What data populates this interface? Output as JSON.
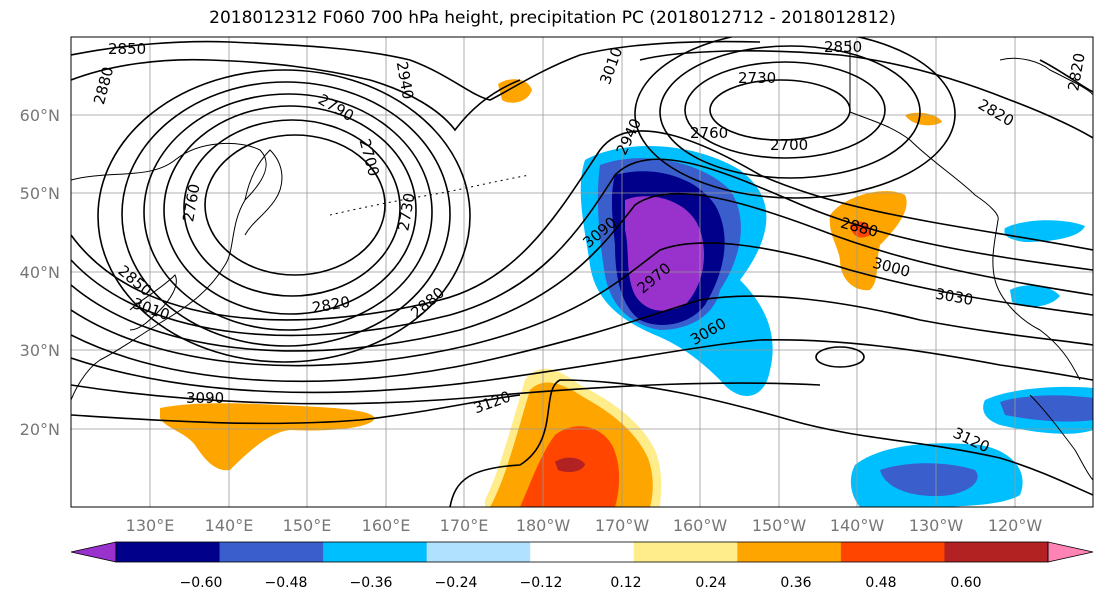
{
  "title": "2018012312 F060 700 hPa height, precipitation PC (2018012712 - 2018012812)",
  "lat_labels": [
    "60°N",
    "50°N",
    "40°N",
    "30°N",
    "20°N"
  ],
  "lon_labels": [
    "130°E",
    "140°E",
    "150°E",
    "160°E",
    "170°E",
    "180°W",
    "170°W",
    "160°W",
    "150°W",
    "140°W",
    "130°W",
    "120°W"
  ],
  "colorbar": {
    "colors": [
      "#9932cc",
      "#00008b",
      "#3a5fcd",
      "#00bfff",
      "#b0e2ff",
      "#ffffff",
      "#ffec8b",
      "#ffa500",
      "#ff4500",
      "#b22222",
      "#ff83b4"
    ],
    "labels": [
      "−0.60",
      "−0.48",
      "−0.36",
      "−0.24",
      "−0.12",
      "0.12",
      "0.24",
      "0.36",
      "0.48",
      "0.60"
    ]
  },
  "contour_labels": [
    "2850",
    "2880",
    "2940",
    "3010",
    "2790",
    "2730",
    "2700",
    "2760",
    "2850",
    "3010",
    "2820",
    "2880",
    "3090",
    "3120",
    "2850",
    "2730",
    "2700",
    "2760",
    "2820",
    "2820",
    "3090",
    "2970",
    "3060",
    "2940",
    "2880",
    "3000",
    "3030",
    "3120"
  ],
  "colors": {
    "contour": "#000000",
    "grid": "#999999",
    "land": "#000000"
  }
}
